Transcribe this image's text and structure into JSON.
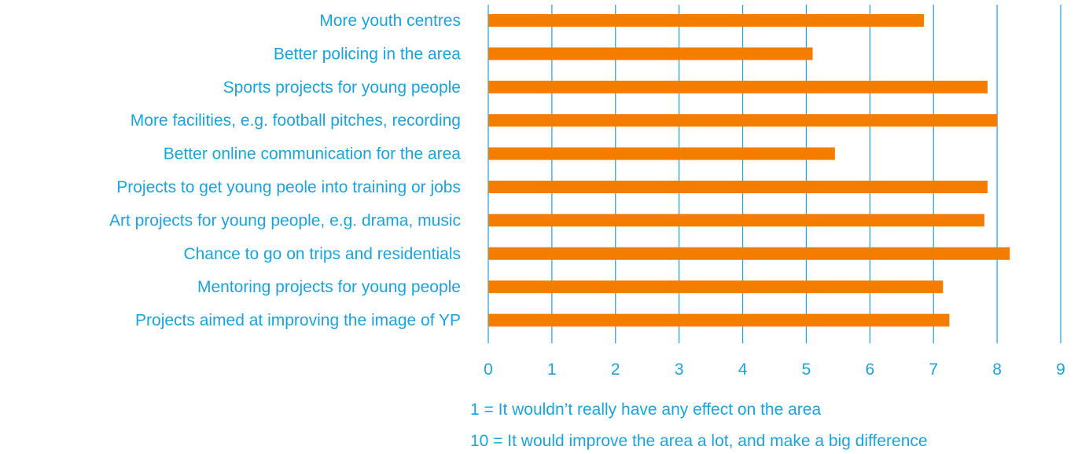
{
  "colors": {
    "text": "#1aa3dc",
    "bar": "#f47d00",
    "grid": "#1aa3dc"
  },
  "chart_data": {
    "type": "bar",
    "orientation": "horizontal",
    "title": "",
    "xlabel": "",
    "ylabel": "",
    "xlim": [
      0,
      9
    ],
    "x_ticks": [
      "0",
      "1",
      "2",
      "3",
      "4",
      "5",
      "6",
      "7",
      "8",
      "9"
    ],
    "grid": true,
    "categories": [
      "More youth centres",
      "Better policing in the area",
      "Sports projects for young people",
      "More facilities, e.g. football pitches, recording",
      "Better online communication for the area",
      "Projects to get young peole into training or jobs",
      "Art projects for young people, e.g. drama, music",
      "Chance to go on trips and residentials",
      "Mentoring projects for young people",
      "Projects aimed at improving the image of YP"
    ],
    "values": [
      6.85,
      5.1,
      7.85,
      8.0,
      5.45,
      7.85,
      7.8,
      8.2,
      7.15,
      7.25
    ],
    "notes": [
      "1 = It wouldn’t really have any effect on the area",
      "10 = It would improve the area a lot, and make a big difference"
    ]
  }
}
